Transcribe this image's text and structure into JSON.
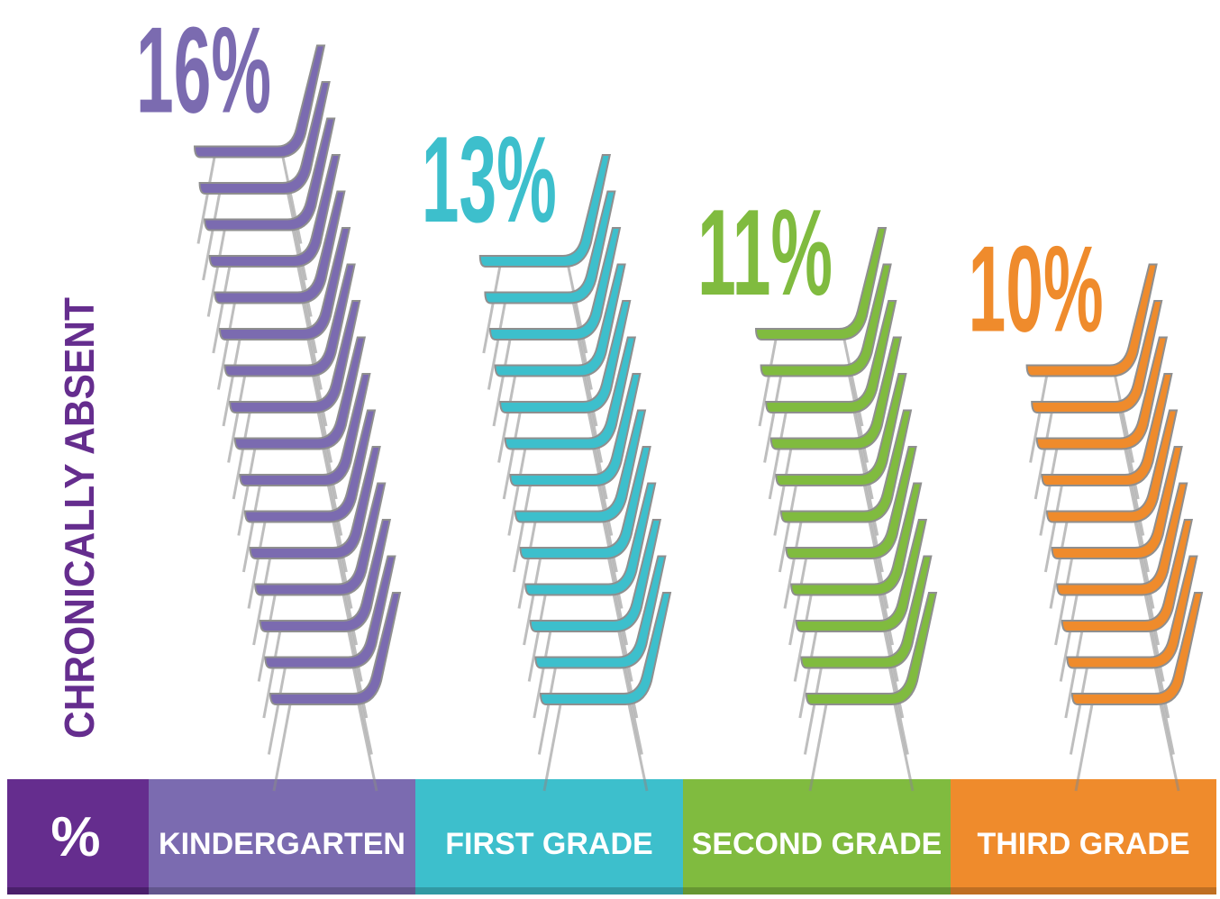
{
  "chart_data": {
    "type": "pictograph",
    "y_label": "CHRONICALLY ABSENT",
    "unit_label": "%",
    "categories": [
      "KINDERGARTEN",
      "FIRST GRADE",
      "SECOND GRADE",
      "THIRD GRADE"
    ],
    "values": [
      16,
      13,
      11,
      10
    ],
    "value_labels": [
      "16%",
      "13%",
      "11%",
      "10%"
    ],
    "colors": [
      "#7b6bb0",
      "#3dbfcc",
      "#80bb3f",
      "#ef8b2c"
    ]
  }
}
